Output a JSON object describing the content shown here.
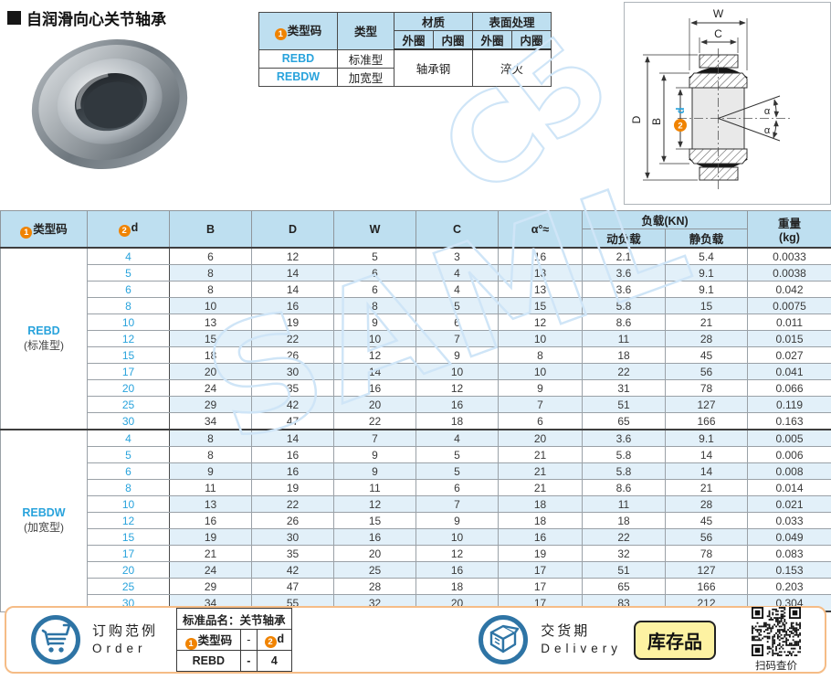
{
  "badges": {
    "one": "1",
    "two": "2"
  },
  "page": {
    "title": "自润滑向心关节轴承"
  },
  "spec_table": {
    "h_type_code": "类型码",
    "h_type": "类型",
    "h_material": "材质",
    "h_surface": "表面处理",
    "h_outer1": "外圈",
    "h_inner1": "内圈",
    "h_outer2": "外圈",
    "h_inner2": "内圈",
    "rows": [
      {
        "code": "REBD",
        "type": "标准型"
      },
      {
        "code": "REBDW",
        "type": "加宽型"
      }
    ],
    "material_value": "轴承钢",
    "surface_value": "淬火"
  },
  "drawing": {
    "labels": {
      "W": "W",
      "C": "C",
      "D": "D",
      "B": "B",
      "d": "d",
      "alpha_top": "α",
      "alpha_bottom": "α"
    }
  },
  "main_table": {
    "headers": {
      "type_code": "类型码",
      "d": "d",
      "B": "B",
      "D": "D",
      "W": "W",
      "C": "C",
      "alpha": "α°≈",
      "load_group": "负载(KN)",
      "dynamic_load": "动负载",
      "static_load": "静负载",
      "weight_line1": "重量",
      "weight_line2": "(kg)"
    },
    "sections": [
      {
        "code": "REBD",
        "type_label": "(标准型)",
        "rows": [
          [
            "4",
            "6",
            "12",
            "5",
            "3",
            "16",
            "2.1",
            "5.4",
            "0.0033"
          ],
          [
            "5",
            "8",
            "14",
            "6",
            "4",
            "13",
            "3.6",
            "9.1",
            "0.0038"
          ],
          [
            "6",
            "8",
            "14",
            "6",
            "4",
            "13",
            "3.6",
            "9.1",
            "0.042"
          ],
          [
            "8",
            "10",
            "16",
            "8",
            "5",
            "15",
            "5.8",
            "15",
            "0.0075"
          ],
          [
            "10",
            "13",
            "19",
            "9",
            "6",
            "12",
            "8.6",
            "21",
            "0.011"
          ],
          [
            "12",
            "15",
            "22",
            "10",
            "7",
            "10",
            "11",
            "28",
            "0.015"
          ],
          [
            "15",
            "18",
            "26",
            "12",
            "9",
            "8",
            "18",
            "45",
            "0.027"
          ],
          [
            "17",
            "20",
            "30",
            "14",
            "10",
            "10",
            "22",
            "56",
            "0.041"
          ],
          [
            "20",
            "24",
            "35",
            "16",
            "12",
            "9",
            "31",
            "78",
            "0.066"
          ],
          [
            "25",
            "29",
            "42",
            "20",
            "16",
            "7",
            "51",
            "127",
            "0.119"
          ],
          [
            "30",
            "34",
            "47",
            "22",
            "18",
            "6",
            "65",
            "166",
            "0.163"
          ]
        ]
      },
      {
        "code": "REBDW",
        "type_label": "(加宽型)",
        "rows": [
          [
            "4",
            "8",
            "14",
            "7",
            "4",
            "20",
            "3.6",
            "9.1",
            "0.005"
          ],
          [
            "5",
            "8",
            "16",
            "9",
            "5",
            "21",
            "5.8",
            "14",
            "0.006"
          ],
          [
            "6",
            "9",
            "16",
            "9",
            "5",
            "21",
            "5.8",
            "14",
            "0.008"
          ],
          [
            "8",
            "11",
            "19",
            "11",
            "6",
            "21",
            "8.6",
            "21",
            "0.014"
          ],
          [
            "10",
            "13",
            "22",
            "12",
            "7",
            "18",
            "11",
            "28",
            "0.021"
          ],
          [
            "12",
            "16",
            "26",
            "15",
            "9",
            "18",
            "18",
            "45",
            "0.033"
          ],
          [
            "15",
            "19",
            "30",
            "16",
            "10",
            "16",
            "22",
            "56",
            "0.049"
          ],
          [
            "17",
            "21",
            "35",
            "20",
            "12",
            "19",
            "32",
            "78",
            "0.083"
          ],
          [
            "20",
            "24",
            "42",
            "25",
            "16",
            "17",
            "51",
            "127",
            "0.153"
          ],
          [
            "25",
            "29",
            "47",
            "28",
            "18",
            "17",
            "65",
            "166",
            "0.203"
          ],
          [
            "30",
            "34",
            "55",
            "32",
            "20",
            "17",
            "83",
            "212",
            "0.304"
          ]
        ]
      }
    ]
  },
  "footer": {
    "order": {
      "label_cn": "订购范例",
      "label_en": "Order",
      "table_title": "标准品名：关节轴承",
      "col_type_code": "类型码",
      "col_d": "d",
      "dash": "-",
      "example_code": "REBD",
      "example_d": "4"
    },
    "delivery": {
      "label_cn": "交货期",
      "label_en": "Delivery",
      "stock_badge": "库存品",
      "qr_caption": "扫码查价"
    }
  },
  "watermark": {
    "text_main": "SAML",
    "text_secondary": "C5"
  },
  "colors": {
    "header_blue": "#bedff0",
    "alt_row_blue": "#e2f0f9",
    "link_blue": "#29a3dc",
    "badge_orange": "#f08300",
    "footer_border": "#f5bc86",
    "stock_yellow": "#fdf2a2",
    "icon_blue": "#2e74a5",
    "watermark_blue": "#cfe5f7"
  }
}
